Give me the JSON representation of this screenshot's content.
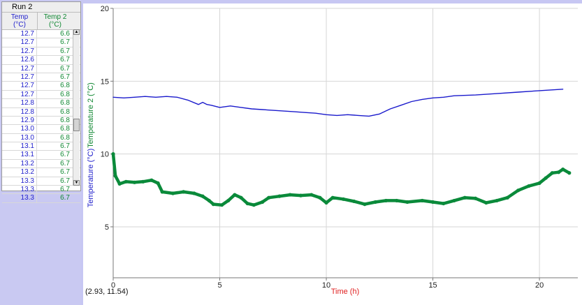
{
  "table": {
    "run_title": "Run 2",
    "col1_label": "Temp",
    "col1_unit": "(°C)",
    "col2_label": "Temp 2",
    "col2_unit": "(°C)",
    "rows": [
      [
        "12.7",
        "6.6"
      ],
      [
        "12.7",
        "6.7"
      ],
      [
        "12.7",
        "6.7"
      ],
      [
        "12.6",
        "6.7"
      ],
      [
        "12.7",
        "6.7"
      ],
      [
        "12.7",
        "6.7"
      ],
      [
        "12.7",
        "6.8"
      ],
      [
        "12.7",
        "6.8"
      ],
      [
        "12.8",
        "6.8"
      ],
      [
        "12.8",
        "6.8"
      ],
      [
        "12.9",
        "6.8"
      ],
      [
        "13.0",
        "6.8"
      ],
      [
        "13.0",
        "6.8"
      ],
      [
        "13.1",
        "6.7"
      ],
      [
        "13.1",
        "6.7"
      ],
      [
        "13.2",
        "6.7"
      ],
      [
        "13.2",
        "6.7"
      ],
      [
        "13.3",
        "6.7"
      ],
      [
        "13.3",
        "6.7"
      ],
      [
        "13.3",
        "6.7"
      ]
    ],
    "scroll_up_icon": "▲",
    "scroll_down_icon": "▼"
  },
  "chart_data": {
    "type": "line",
    "xlabel": "Time (h)",
    "ylabel_1": "Temperature (°C)",
    "ylabel_2": "Temperature 2 (°C)",
    "xlim": [
      0,
      21.8
    ],
    "ylim": [
      1.5,
      20
    ],
    "x_ticks": [
      0,
      5,
      10,
      15,
      20
    ],
    "y_ticks": [
      5,
      10,
      15,
      20
    ],
    "grid": true,
    "coordinate_readout": "(2.93, 11.54)",
    "series": [
      {
        "color": "#1a1acc",
        "style": "line",
        "points": [
          [
            0,
            13.9
          ],
          [
            0.5,
            13.85
          ],
          [
            1,
            13.9
          ],
          [
            1.5,
            13.95
          ],
          [
            2,
            13.9
          ],
          [
            2.5,
            13.95
          ],
          [
            3,
            13.9
          ],
          [
            3.5,
            13.7
          ],
          [
            4,
            13.4
          ],
          [
            4.2,
            13.55
          ],
          [
            4.4,
            13.4
          ],
          [
            4.6,
            13.35
          ],
          [
            5,
            13.2
          ],
          [
            5.5,
            13.3
          ],
          [
            6,
            13.2
          ],
          [
            6.5,
            13.1
          ],
          [
            7,
            13.05
          ],
          [
            7.5,
            13.0
          ],
          [
            8,
            12.95
          ],
          [
            8.5,
            12.9
          ],
          [
            9,
            12.85
          ],
          [
            9.5,
            12.8
          ],
          [
            10,
            12.7
          ],
          [
            10.5,
            12.65
          ],
          [
            11,
            12.7
          ],
          [
            11.5,
            12.65
          ],
          [
            12,
            12.6
          ],
          [
            12.5,
            12.75
          ],
          [
            13,
            13.1
          ],
          [
            13.5,
            13.35
          ],
          [
            14,
            13.6
          ],
          [
            14.5,
            13.75
          ],
          [
            15,
            13.85
          ],
          [
            15.5,
            13.9
          ],
          [
            16,
            14.0
          ],
          [
            17,
            14.05
          ],
          [
            18,
            14.15
          ],
          [
            19,
            14.25
          ],
          [
            20,
            14.35
          ],
          [
            21.1,
            14.45
          ]
        ]
      },
      {
        "color": "#0a8a3a",
        "style": "thick",
        "points": [
          [
            0,
            10.0
          ],
          [
            0.1,
            8.5
          ],
          [
            0.3,
            7.95
          ],
          [
            0.6,
            8.1
          ],
          [
            1,
            8.05
          ],
          [
            1.4,
            8.1
          ],
          [
            1.8,
            8.2
          ],
          [
            2.1,
            8.0
          ],
          [
            2.3,
            7.4
          ],
          [
            2.8,
            7.3
          ],
          [
            3.3,
            7.4
          ],
          [
            3.8,
            7.3
          ],
          [
            4.2,
            7.1
          ],
          [
            4.5,
            6.8
          ],
          [
            4.7,
            6.55
          ],
          [
            5.1,
            6.5
          ],
          [
            5.4,
            6.8
          ],
          [
            5.7,
            7.2
          ],
          [
            6.0,
            7.0
          ],
          [
            6.3,
            6.6
          ],
          [
            6.6,
            6.5
          ],
          [
            7.0,
            6.7
          ],
          [
            7.3,
            7.0
          ],
          [
            7.8,
            7.1
          ],
          [
            8.3,
            7.2
          ],
          [
            8.8,
            7.15
          ],
          [
            9.3,
            7.2
          ],
          [
            9.7,
            7.0
          ],
          [
            10.0,
            6.65
          ],
          [
            10.3,
            7.0
          ],
          [
            10.8,
            6.9
          ],
          [
            11.3,
            6.75
          ],
          [
            11.8,
            6.55
          ],
          [
            12.3,
            6.7
          ],
          [
            12.8,
            6.8
          ],
          [
            13.3,
            6.8
          ],
          [
            13.8,
            6.7
          ],
          [
            14.5,
            6.8
          ],
          [
            15.0,
            6.7
          ],
          [
            15.5,
            6.6
          ],
          [
            16.0,
            6.8
          ],
          [
            16.5,
            7.0
          ],
          [
            17.0,
            6.95
          ],
          [
            17.5,
            6.65
          ],
          [
            18.0,
            6.8
          ],
          [
            18.5,
            7.0
          ],
          [
            19.0,
            7.5
          ],
          [
            19.5,
            7.8
          ],
          [
            20.0,
            8.0
          ],
          [
            20.3,
            8.35
          ],
          [
            20.6,
            8.7
          ],
          [
            20.9,
            8.75
          ],
          [
            21.1,
            8.95
          ],
          [
            21.4,
            8.7
          ]
        ]
      }
    ]
  }
}
